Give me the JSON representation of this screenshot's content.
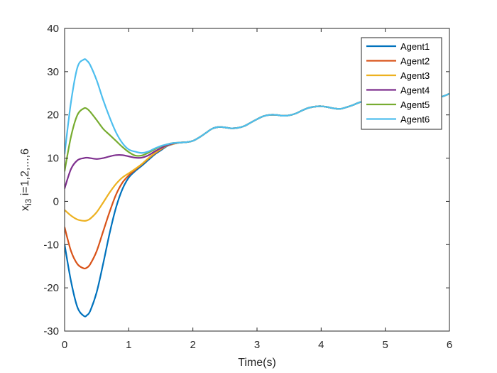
{
  "chart_data": {
    "type": "line",
    "title": "",
    "xlabel": "Time(s)",
    "ylabel": "x_{i3} i=1,2,...,6",
    "ylabel_parts": {
      "base": "x",
      "sub": "i3",
      "rest": " i=1,2,...,6"
    },
    "xlim": [
      0,
      6
    ],
    "ylim": [
      -30,
      40
    ],
    "xticks": [
      0,
      1,
      2,
      3,
      4,
      5,
      6
    ],
    "yticks": [
      -30,
      -20,
      -10,
      0,
      10,
      20,
      30,
      40
    ],
    "grid": false,
    "legend_position": "top-right",
    "x": [
      0,
      0.1,
      0.2,
      0.3,
      0.35,
      0.4,
      0.5,
      0.6,
      0.7,
      0.8,
      0.9,
      1.0,
      1.1,
      1.2,
      1.3,
      1.4,
      1.5,
      1.6,
      1.7,
      1.8,
      1.9,
      2.0,
      2.1,
      2.2,
      2.3,
      2.4,
      2.5,
      2.6,
      2.7,
      2.8,
      2.9,
      3.0,
      3.1,
      3.2,
      3.3,
      3.4,
      3.5,
      3.6,
      3.7,
      3.8,
      3.9,
      4.0,
      4.1,
      4.2,
      4.3,
      4.4,
      4.5,
      4.6,
      4.7,
      4.8,
      4.9,
      5.0,
      5.1,
      5.2,
      5.3,
      5.4,
      5.5,
      5.6,
      5.7,
      5.8,
      5.9,
      6.0
    ],
    "series": [
      {
        "name": "Agent1",
        "color": "#0072BD",
        "values": [
          -10,
          -18.5,
          -24.5,
          -26.5,
          -26.3,
          -25.3,
          -21,
          -14.5,
          -7.5,
          -1.5,
          2.8,
          5.5,
          7,
          8.2,
          9.5,
          10.8,
          11.8,
          12.8,
          13.3,
          13.6,
          13.7,
          14,
          14.8,
          15.8,
          16.8,
          17.2,
          17.1,
          16.9,
          17,
          17.4,
          18.2,
          19,
          19.7,
          20,
          20,
          19.8,
          19.9,
          20.3,
          21,
          21.6,
          21.9,
          22,
          21.8,
          21.5,
          21.4,
          21.8,
          22.3,
          22.9,
          23.2,
          23.3,
          23.1,
          22.9,
          22.8,
          23.1,
          23.6,
          24.1,
          24.4,
          24.5,
          24.3,
          24.1,
          24.3,
          24.9
        ]
      },
      {
        "name": "Agent2",
        "color": "#D95319",
        "values": [
          -6,
          -11.5,
          -14.5,
          -15.5,
          -15.3,
          -14.5,
          -11.5,
          -7,
          -2.5,
          1.5,
          4.3,
          6,
          7.3,
          8.5,
          9.8,
          11,
          12,
          12.9,
          13.3,
          13.6,
          13.7,
          14,
          14.8,
          15.8,
          16.8,
          17.2,
          17.1,
          16.9,
          17,
          17.4,
          18.2,
          19,
          19.7,
          20,
          20,
          19.8,
          19.9,
          20.3,
          21,
          21.6,
          21.9,
          22,
          21.8,
          21.5,
          21.4,
          21.8,
          22.3,
          22.9,
          23.2,
          23.3,
          23.1,
          22.9,
          22.8,
          23.1,
          23.6,
          24.1,
          24.4,
          24.5,
          24.3,
          24.1,
          24.3,
          24.9
        ]
      },
      {
        "name": "Agent3",
        "color": "#EDB120",
        "values": [
          -2,
          -3.3,
          -4.2,
          -4.5,
          -4.4,
          -4.0,
          -2.5,
          -0.3,
          2,
          4,
          5.5,
          6.5,
          7.5,
          8.6,
          9.9,
          11.1,
          12.1,
          12.9,
          13.3,
          13.6,
          13.7,
          14,
          14.8,
          15.8,
          16.8,
          17.2,
          17.1,
          16.9,
          17,
          17.4,
          18.2,
          19,
          19.7,
          20,
          20,
          19.8,
          19.9,
          20.3,
          21,
          21.6,
          21.9,
          22,
          21.8,
          21.5,
          21.4,
          21.8,
          22.3,
          22.9,
          23.2,
          23.3,
          23.1,
          22.9,
          22.8,
          23.1,
          23.6,
          24.1,
          24.4,
          24.5,
          24.3,
          24.1,
          24.3,
          24.9
        ]
      },
      {
        "name": "Agent4",
        "color": "#7E2F8E",
        "values": [
          3,
          7.5,
          9.5,
          10,
          10.1,
          10,
          9.8,
          10,
          10.4,
          10.7,
          10.7,
          10.4,
          10.1,
          10.1,
          10.6,
          11.5,
          12.3,
          13,
          13.4,
          13.6,
          13.7,
          14,
          14.8,
          15.8,
          16.8,
          17.2,
          17.1,
          16.9,
          17,
          17.4,
          18.2,
          19,
          19.7,
          20,
          20,
          19.8,
          19.9,
          20.3,
          21,
          21.6,
          21.9,
          22,
          21.8,
          21.5,
          21.4,
          21.8,
          22.3,
          22.9,
          23.2,
          23.3,
          23.1,
          22.9,
          22.8,
          23.1,
          23.6,
          24.1,
          24.4,
          24.5,
          24.3,
          24.1,
          24.3,
          24.9
        ]
      },
      {
        "name": "Agent5",
        "color": "#77AC30",
        "values": [
          7,
          15,
          20,
          21.5,
          21.4,
          20.7,
          18.8,
          16.8,
          15.4,
          14,
          12.6,
          11.4,
          10.6,
          10.6,
          11.2,
          12,
          12.7,
          13.2,
          13.5,
          13.6,
          13.7,
          14,
          14.8,
          15.8,
          16.8,
          17.2,
          17.1,
          16.9,
          17,
          17.4,
          18.2,
          19,
          19.7,
          20,
          20,
          19.8,
          19.9,
          20.3,
          21,
          21.6,
          21.9,
          22,
          21.8,
          21.5,
          21.4,
          21.8,
          22.3,
          22.9,
          23.2,
          23.3,
          23.1,
          22.9,
          22.8,
          23.1,
          23.6,
          24.1,
          24.4,
          24.5,
          24.3,
          24.1,
          24.3,
          24.9
        ]
      },
      {
        "name": "Agent6",
        "color": "#4DBEEE",
        "values": [
          11,
          23,
          31,
          32.8,
          32.5,
          31.5,
          28,
          23.5,
          19.5,
          16,
          13.5,
          12,
          11.5,
          11.2,
          11.5,
          12.2,
          12.8,
          13.2,
          13.5,
          13.6,
          13.7,
          14,
          14.8,
          15.8,
          16.8,
          17.2,
          17.1,
          16.9,
          17,
          17.4,
          18.2,
          19,
          19.7,
          20,
          20,
          19.8,
          19.9,
          20.3,
          21,
          21.6,
          21.9,
          22,
          21.8,
          21.5,
          21.4,
          21.8,
          22.3,
          22.9,
          23.2,
          23.3,
          23.1,
          22.9,
          22.8,
          23.1,
          23.6,
          24.1,
          24.4,
          24.5,
          24.3,
          24.1,
          24.3,
          24.9
        ]
      }
    ]
  }
}
